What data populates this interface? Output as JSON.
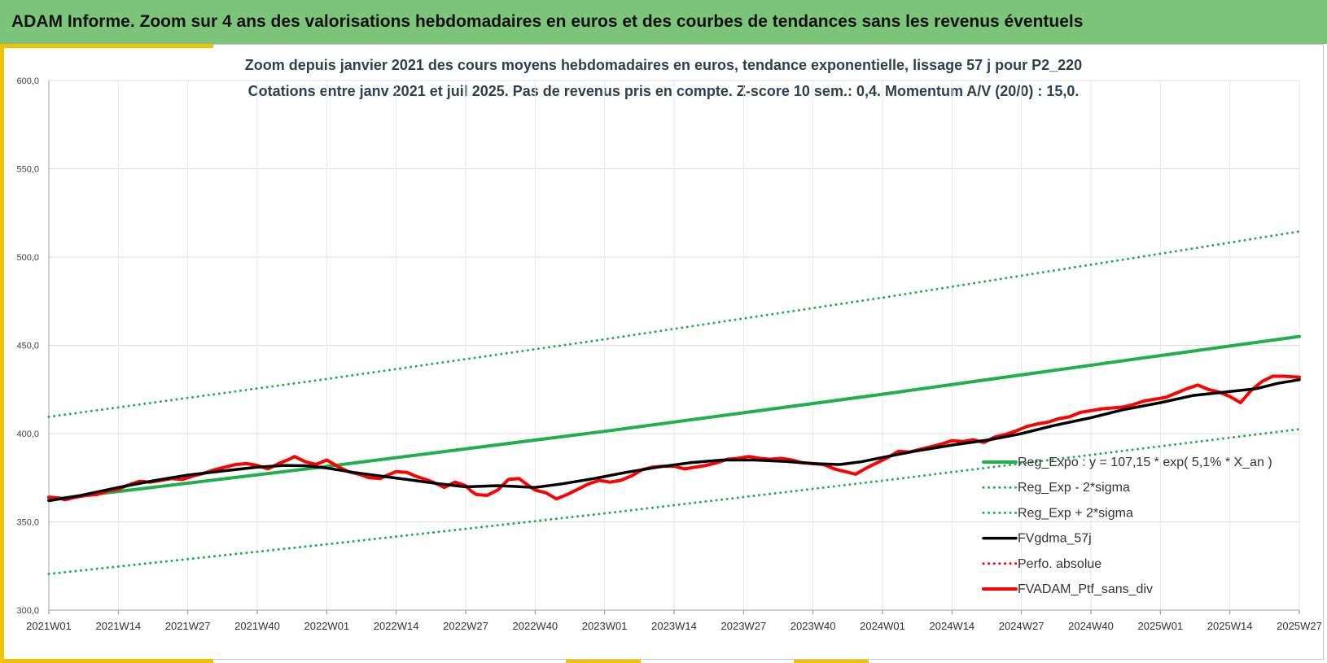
{
  "header": {
    "title": "ADAM Informe. Zoom sur 4 ans des valorisations hebdomadaires en euros et des courbes de tendances sans les revenus éventuels"
  },
  "chart_data": {
    "type": "line",
    "title": "Zoom depuis janvier 2021 des cours moyens hebdomadaires  en euros, tendance exponentielle, lissage 57 j pour P2_220",
    "subtitle": "Cotations entre janv 2021 et juil 2025. Pas de revenus pris en compte. Z-score 10 sem.: 0,4. Momentum A/V (20/0) : 15,0.",
    "xlabel": "",
    "ylabel": "",
    "ylim": [
      300,
      600
    ],
    "yticks": [
      "300,0",
      "350,0",
      "400,0",
      "450,0",
      "500,0",
      "550,0",
      "600,0"
    ],
    "xlim": [
      0,
      234
    ],
    "x_tick_labels": [
      "2021W01",
      "2021W14",
      "2021W27",
      "2021W40",
      "2022W01",
      "2022W14",
      "2022W27",
      "2022W40",
      "2023W01",
      "2023W14",
      "2023W27",
      "2023W40",
      "2024W01",
      "2024W14",
      "2024W27",
      "2024W40",
      "2025W01",
      "2025W14",
      "2025W27"
    ],
    "x_tick_positions": [
      0,
      13,
      26,
      39,
      52,
      65,
      78,
      91,
      104,
      117,
      130,
      143,
      156,
      169,
      182,
      195,
      208,
      221,
      234
    ],
    "grid": true,
    "legend_position": "bottom-right",
    "series": [
      {
        "name": "Reg_Expo : y = 107,15 * exp( 5,1% *  X_an )",
        "color": "#1fb04e",
        "style": "solid",
        "x": [
          0,
          52,
          104,
          156,
          208,
          234
        ],
        "values": [
          362.5,
          381.4,
          401.3,
          422.3,
          444.2,
          455.0
        ]
      },
      {
        "name": "Reg_Exp - 2*sigma",
        "color": "#1fb04e",
        "style": "dotted",
        "x": [
          0,
          52,
          104,
          156,
          208,
          234
        ],
        "values": [
          320.5,
          337.3,
          354.8,
          373.3,
          392.8,
          402.5
        ]
      },
      {
        "name": "Reg_Exp + 2*sigma",
        "color": "#1fb04e",
        "style": "dotted",
        "x": [
          0,
          52,
          104,
          156,
          208,
          234
        ],
        "values": [
          409.5,
          430.9,
          453.4,
          477.0,
          501.9,
          514.5
        ]
      },
      {
        "name": "FVgdma_57j",
        "color": "#000000",
        "style": "solid",
        "x": [
          0,
          6,
          13,
          20,
          26,
          33,
          39,
          44,
          48,
          52,
          57,
          62,
          67,
          72,
          78,
          84,
          91,
          96,
          102,
          108,
          114,
          120,
          126,
          132,
          138,
          143,
          148,
          152,
          156,
          162,
          169,
          176,
          182,
          188,
          195,
          201,
          208,
          214,
          220,
          226,
          230,
          234
        ],
        "values": [
          362.0,
          365.0,
          369.5,
          373.5,
          376.5,
          379.0,
          381.0,
          382.0,
          381.8,
          380.5,
          378.0,
          376.0,
          374.0,
          372.0,
          369.8,
          370.5,
          369.5,
          371.5,
          374.5,
          378.0,
          381.0,
          383.5,
          385.0,
          385.0,
          384.2,
          383.0,
          382.5,
          384.0,
          386.5,
          390.0,
          393.5,
          396.5,
          400.0,
          404.5,
          409.0,
          413.5,
          417.5,
          421.5,
          423.5,
          425.5,
          428.5,
          430.5
        ]
      },
      {
        "name": "Perfo. absolue",
        "color": "#ff0000",
        "style": "dotted",
        "x": [],
        "values": []
      },
      {
        "name": "FVADAM_Ptf_sans_div",
        "color": "#ff0000",
        "style": "solid",
        "x": [
          0,
          2,
          3,
          5,
          7,
          9,
          11,
          13,
          15,
          17,
          19,
          21,
          23,
          25,
          27,
          29,
          31,
          33,
          35,
          37,
          39,
          41,
          43,
          45,
          46,
          48,
          50,
          52,
          54,
          56,
          58,
          60,
          62,
          63,
          65,
          67,
          69,
          71,
          73,
          74,
          76,
          78,
          79,
          80,
          82,
          84,
          86,
          88,
          90,
          91,
          93,
          95,
          97,
          99,
          101,
          103,
          105,
          107,
          109,
          111,
          113,
          115,
          117,
          119,
          121,
          123,
          125,
          127,
          129,
          131,
          133,
          135,
          137,
          139,
          141,
          143,
          145,
          147,
          149,
          151,
          153,
          155,
          157,
          159,
          161,
          163,
          165,
          167,
          169,
          171,
          173,
          175,
          177,
          179,
          181,
          183,
          185,
          187,
          189,
          191,
          193,
          195,
          197,
          199,
          201,
          203,
          205,
          207,
          209,
          211,
          213,
          215,
          217,
          219,
          221,
          223,
          225,
          227,
          229,
          231,
          234
        ],
        "values": [
          364.0,
          363.5,
          362.5,
          364.0,
          365.0,
          365.5,
          367.5,
          368.5,
          371.0,
          373.0,
          372.5,
          373.5,
          374.5,
          374.0,
          376.0,
          377.5,
          379.5,
          381.0,
          382.5,
          383.0,
          382.0,
          380.0,
          383.0,
          385.5,
          387.0,
          384.0,
          382.5,
          385.0,
          381.5,
          378.5,
          377.0,
          375.0,
          374.5,
          376.0,
          378.5,
          378.0,
          375.5,
          373.5,
          371.0,
          369.5,
          372.5,
          370.5,
          367.5,
          365.5,
          365.0,
          368.0,
          374.0,
          374.5,
          370.0,
          368.0,
          366.5,
          363.0,
          365.5,
          368.5,
          371.5,
          373.5,
          372.5,
          373.5,
          376.0,
          379.5,
          381.0,
          381.5,
          381.5,
          380.0,
          381.0,
          382.0,
          383.5,
          385.5,
          386.0,
          387.0,
          386.0,
          385.5,
          386.0,
          385.0,
          383.5,
          383.0,
          382.5,
          380.0,
          378.5,
          377.0,
          380.5,
          383.5,
          386.5,
          390.0,
          389.5,
          391.0,
          392.5,
          394.0,
          396.0,
          395.5,
          396.5,
          395.0,
          398.0,
          399.5,
          401.5,
          404.0,
          405.5,
          406.5,
          408.5,
          409.5,
          412.0,
          413.0,
          414.0,
          414.5,
          415.0,
          416.5,
          418.5,
          419.5,
          420.5,
          423.0,
          425.5,
          427.5,
          425.0,
          423.5,
          421.0,
          417.5,
          424.5,
          429.5,
          432.5,
          432.5,
          432.0
        ]
      }
    ]
  }
}
